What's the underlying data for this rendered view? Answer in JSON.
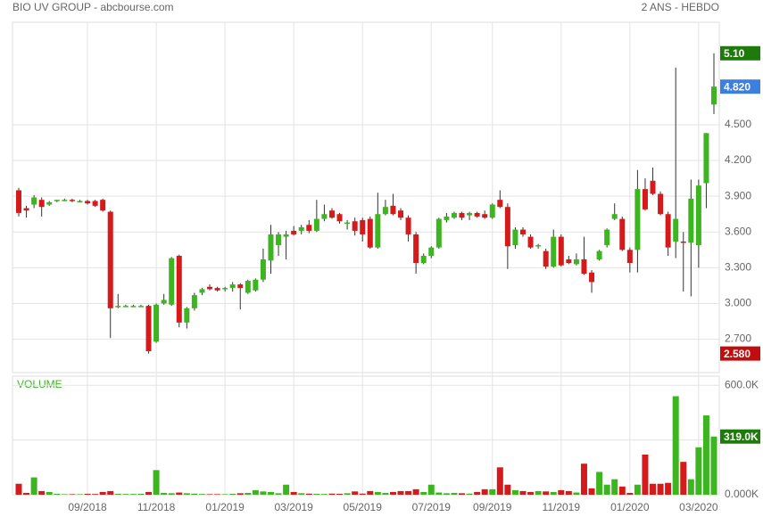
{
  "chart_data": [
    {
      "type": "candlestick",
      "title": "BIO UV GROUP - abcbourse.com",
      "subtitle": "2 ANS - HEBDO",
      "categories": [
        null,
        null,
        null,
        null,
        null,
        null,
        null,
        null,
        null,
        "09/2018",
        null,
        null,
        null,
        null,
        null,
        null,
        null,
        null,
        "11/2018",
        null,
        null,
        null,
        null,
        null,
        null,
        null,
        null,
        "01/2019",
        null,
        null,
        null,
        null,
        null,
        null,
        null,
        null,
        "03/2019",
        null,
        null,
        null,
        null,
        null,
        null,
        null,
        null,
        "05/2019",
        null,
        null,
        null,
        null,
        null,
        null,
        null,
        null,
        "07/2019",
        null,
        null,
        null,
        null,
        null,
        null,
        null,
        "09/2019",
        null,
        null,
        null,
        null,
        null,
        null,
        null,
        null,
        "11/2019",
        null,
        null,
        null,
        null,
        null,
        null,
        null,
        null,
        "01/2020",
        null,
        null,
        null,
        null,
        null,
        null,
        null,
        null,
        "03/2020",
        null,
        null
      ],
      "open": [
        3.95,
        3.8,
        3.83,
        3.87,
        3.83,
        3.86,
        3.87,
        3.87,
        3.86,
        3.86,
        3.86,
        3.87,
        3.77,
        2.97,
        2.98,
        2.98,
        2.98,
        2.98,
        2.68,
        3.0,
        2.99,
        3.4,
        2.84,
        2.96,
        3.09,
        3.14,
        3.13,
        3.12,
        3.13,
        3.16,
        3.09,
        3.11,
        3.2,
        3.36,
        3.49,
        3.56,
        3.61,
        3.61,
        3.66,
        3.61,
        3.71,
        3.78,
        3.75,
        3.67,
        3.69,
        3.7,
        3.71,
        3.47,
        3.75,
        3.82,
        3.78,
        3.72,
        3.58,
        3.34,
        3.4,
        3.47,
        3.7,
        3.72,
        3.76,
        3.74,
        3.76,
        3.75,
        3.72,
        3.87,
        3.81,
        3.49,
        3.62,
        3.56,
        3.48,
        3.44,
        3.31,
        3.56,
        3.37,
        3.33,
        3.37,
        3.26,
        3.37,
        3.49,
        3.71,
        3.71,
        3.45,
        3.45,
        3.96,
        4.03,
        3.92,
        3.75,
        3.52,
        3.52,
        3.51,
        3.49,
        4.01,
        4.67
      ],
      "high": [
        3.97,
        3.82,
        3.91,
        3.89,
        3.86,
        3.87,
        3.88,
        3.88,
        3.87,
        3.87,
        3.87,
        3.88,
        3.78,
        3.08,
        2.99,
        2.99,
        2.99,
        2.99,
        3.0,
        3.08,
        3.39,
        3.41,
        2.97,
        3.09,
        3.13,
        3.16,
        3.14,
        3.14,
        3.18,
        3.17,
        3.2,
        3.21,
        3.46,
        3.66,
        3.6,
        3.61,
        3.65,
        3.66,
        3.7,
        3.87,
        3.83,
        3.8,
        3.76,
        3.7,
        3.72,
        3.72,
        3.73,
        3.93,
        3.87,
        3.92,
        3.8,
        3.74,
        3.6,
        3.42,
        3.48,
        3.72,
        3.76,
        3.77,
        3.77,
        3.77,
        3.77,
        3.78,
        3.84,
        3.95,
        3.84,
        3.64,
        3.64,
        3.58,
        3.5,
        3.46,
        3.62,
        3.58,
        3.4,
        3.42,
        3.56,
        3.28,
        3.45,
        3.63,
        3.84,
        3.73,
        3.47,
        4.12,
        4.05,
        4.14,
        3.94,
        3.77,
        4.98,
        3.6,
        4.04,
        4.04,
        4.43,
        5.1
      ],
      "low": [
        3.73,
        3.72,
        3.8,
        3.73,
        3.82,
        3.85,
        3.86,
        3.85,
        3.85,
        3.83,
        3.81,
        3.77,
        2.71,
        2.96,
        2.97,
        2.97,
        2.97,
        2.58,
        2.67,
        2.99,
        2.98,
        2.8,
        2.79,
        2.94,
        3.07,
        3.11,
        3.1,
        3.1,
        3.1,
        2.95,
        3.08,
        3.1,
        3.18,
        3.25,
        3.4,
        3.37,
        3.57,
        3.58,
        3.59,
        3.6,
        3.69,
        3.71,
        3.67,
        3.62,
        3.57,
        3.52,
        3.46,
        3.46,
        3.74,
        3.74,
        3.7,
        3.52,
        3.25,
        3.33,
        3.38,
        3.46,
        3.68,
        3.71,
        3.7,
        3.7,
        3.72,
        3.71,
        3.71,
        3.8,
        3.29,
        3.46,
        3.56,
        3.46,
        3.46,
        3.29,
        3.3,
        3.31,
        3.33,
        3.32,
        3.24,
        3.09,
        3.36,
        3.47,
        3.7,
        3.44,
        3.26,
        3.26,
        3.78,
        3.91,
        3.74,
        3.4,
        3.38,
        3.1,
        3.06,
        3.3,
        3.8,
        4.59
      ],
      "close": [
        3.76,
        3.78,
        3.89,
        3.81,
        3.85,
        3.87,
        3.87,
        3.86,
        3.86,
        3.84,
        3.82,
        3.78,
        2.96,
        2.98,
        2.98,
        2.98,
        2.98,
        2.6,
        2.99,
        3.03,
        3.38,
        2.84,
        2.96,
        3.07,
        3.12,
        3.12,
        3.11,
        3.13,
        3.16,
        3.13,
        3.19,
        3.2,
        3.37,
        3.58,
        3.58,
        3.58,
        3.58,
        3.64,
        3.61,
        3.71,
        3.75,
        3.72,
        3.69,
        3.68,
        3.61,
        3.58,
        3.47,
        3.75,
        3.81,
        3.75,
        3.72,
        3.58,
        3.34,
        3.4,
        3.47,
        3.71,
        3.73,
        3.76,
        3.72,
        3.76,
        3.73,
        3.72,
        3.83,
        3.81,
        3.48,
        3.62,
        3.58,
        3.47,
        3.49,
        3.31,
        3.56,
        3.32,
        3.34,
        3.37,
        3.25,
        3.18,
        3.44,
        3.62,
        3.75,
        3.45,
        3.34,
        3.96,
        3.79,
        3.92,
        3.75,
        3.47,
        3.71,
        3.51,
        3.88,
        3.99,
        4.43,
        4.82
      ],
      "up_color": "#3cb521",
      "down_color": "#d41a1a",
      "wick_color": "#333333",
      "ylim": [
        2.42,
        5.36
      ],
      "yticks": [
        {
          "value": 2.7,
          "label": "2.700"
        },
        {
          "value": 3.0,
          "label": "3.000"
        },
        {
          "value": 3.3,
          "label": "3.300"
        },
        {
          "value": 3.6,
          "label": "3.600"
        },
        {
          "value": 3.9,
          "label": "3.900"
        },
        {
          "value": 4.2,
          "label": "4.200"
        },
        {
          "value": 4.5,
          "label": "4.500"
        }
      ],
      "markers": [
        {
          "value": 5.1,
          "label": "5.10",
          "color": "#1f7a0c"
        },
        {
          "value": 4.82,
          "label": "4.820",
          "color": "#3d7fe0"
        },
        {
          "value": 2.58,
          "label": "2.580",
          "color": "#c10d0d"
        }
      ],
      "grid": true
    },
    {
      "type": "bar",
      "title": "VOLUME",
      "values": [
        60,
        10,
        95,
        20,
        15,
        5,
        3,
        3,
        3,
        5,
        4,
        15,
        20,
        5,
        4,
        4,
        5,
        15,
        135,
        10,
        8,
        12,
        8,
        6,
        4,
        3,
        3,
        3,
        5,
        8,
        10,
        25,
        18,
        15,
        8,
        55,
        15,
        8,
        6,
        5,
        4,
        6,
        5,
        8,
        18,
        6,
        20,
        15,
        10,
        15,
        20,
        20,
        30,
        15,
        55,
        12,
        8,
        10,
        8,
        6,
        15,
        30,
        30,
        150,
        55,
        25,
        20,
        15,
        20,
        18,
        15,
        25,
        20,
        12,
        170,
        35,
        125,
        55,
        85,
        45,
        10,
        55,
        220,
        60,
        60,
        65,
        540,
        180,
        85,
        260,
        435,
        319
      ],
      "ylim": [
        0,
        650
      ],
      "yticks": [
        {
          "value": 0,
          "label": "0.000K"
        },
        {
          "value": 300,
          "label": "300.0K"
        },
        {
          "value": 600,
          "label": "600.0K"
        }
      ],
      "markers": [
        {
          "value": 319,
          "label": "319.0K",
          "color": "#1f7a0c"
        }
      ],
      "grid": true
    }
  ]
}
